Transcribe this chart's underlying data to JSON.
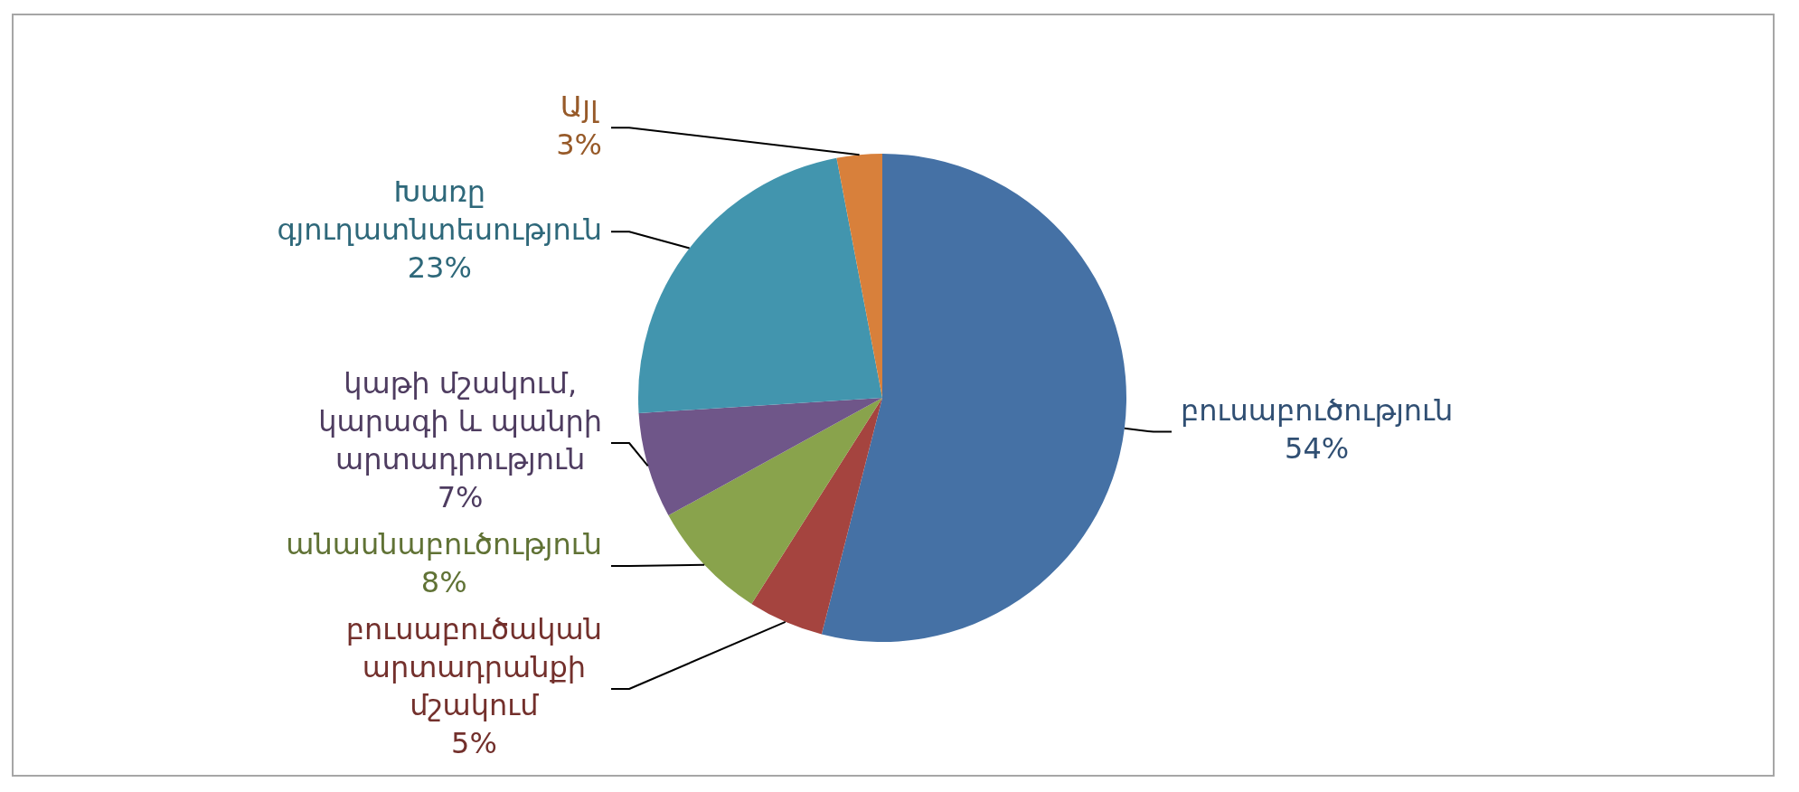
{
  "chart_data": {
    "type": "pie",
    "categories": [
      "բուսաբուծություն",
      "բուսաբուծական արտադրանքի մշակում",
      "անասնաբուծություն",
      "կաթի մշակում, կարագի և պանրի արտադրություն",
      "Խառը գյուղատնտեսություն",
      "Այլ"
    ],
    "values": [
      54,
      5,
      8,
      7,
      23,
      3
    ],
    "colors": [
      "#4571a5",
      "#a5443f",
      "#89a34c",
      "#6f5689",
      "#4295ae",
      "#d8803b"
    ],
    "value_labels": [
      "54%",
      "5%",
      "8%",
      "7%",
      "23%",
      "3%"
    ],
    "legend": false
  }
}
